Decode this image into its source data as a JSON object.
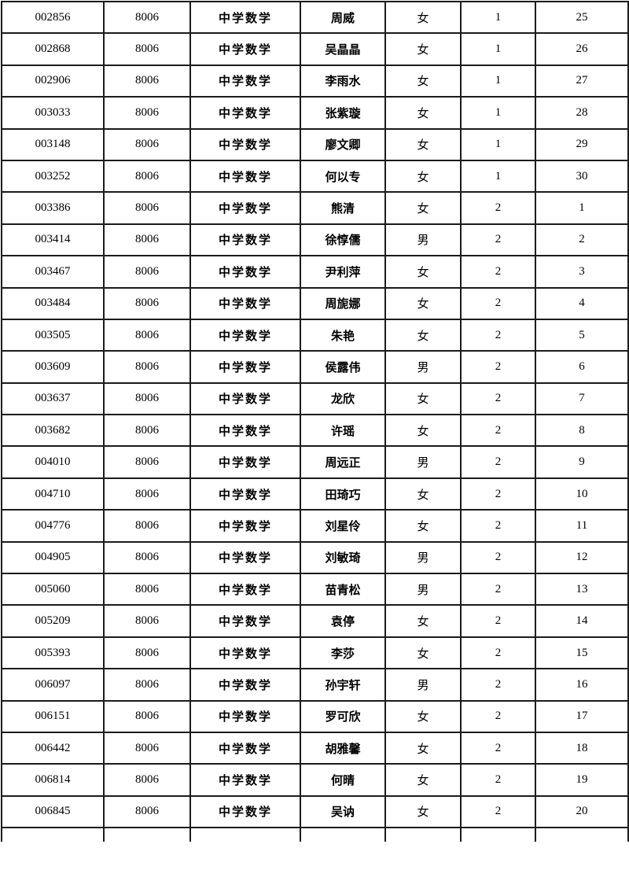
{
  "table": {
    "column_keys": [
      "id",
      "code",
      "subject",
      "name",
      "gender",
      "group",
      "seq"
    ],
    "column_semantics": {
      "id": "candidate-id",
      "code": "position-code",
      "subject": "subject-name",
      "name": "candidate-name",
      "gender": "gender",
      "group": "group-number",
      "seq": "sequence-number"
    },
    "rows": [
      [
        "002856",
        "8006",
        "中学数学",
        "周威",
        "女",
        "1",
        "25"
      ],
      [
        "002868",
        "8006",
        "中学数学",
        "吴晶晶",
        "女",
        "1",
        "26"
      ],
      [
        "002906",
        "8006",
        "中学数学",
        "李雨水",
        "女",
        "1",
        "27"
      ],
      [
        "003033",
        "8006",
        "中学数学",
        "张紫璇",
        "女",
        "1",
        "28"
      ],
      [
        "003148",
        "8006",
        "中学数学",
        "廖文卿",
        "女",
        "1",
        "29"
      ],
      [
        "003252",
        "8006",
        "中学数学",
        "何以专",
        "女",
        "1",
        "30"
      ],
      [
        "003386",
        "8006",
        "中学数学",
        "熊清",
        "女",
        "2",
        "1"
      ],
      [
        "003414",
        "8006",
        "中学数学",
        "徐惇儒",
        "男",
        "2",
        "2"
      ],
      [
        "003467",
        "8006",
        "中学数学",
        "尹利萍",
        "女",
        "2",
        "3"
      ],
      [
        "003484",
        "8006",
        "中学数学",
        "周旎娜",
        "女",
        "2",
        "4"
      ],
      [
        "003505",
        "8006",
        "中学数学",
        "朱艳",
        "女",
        "2",
        "5"
      ],
      [
        "003609",
        "8006",
        "中学数学",
        "侯露伟",
        "男",
        "2",
        "6"
      ],
      [
        "003637",
        "8006",
        "中学数学",
        "龙欣",
        "女",
        "2",
        "7"
      ],
      [
        "003682",
        "8006",
        "中学数学",
        "许瑶",
        "女",
        "2",
        "8"
      ],
      [
        "004010",
        "8006",
        "中学数学",
        "周远正",
        "男",
        "2",
        "9"
      ],
      [
        "004710",
        "8006",
        "中学数学",
        "田琦巧",
        "女",
        "2",
        "10"
      ],
      [
        "004776",
        "8006",
        "中学数学",
        "刘星伶",
        "女",
        "2",
        "11"
      ],
      [
        "004905",
        "8006",
        "中学数学",
        "刘敏琦",
        "男",
        "2",
        "12"
      ],
      [
        "005060",
        "8006",
        "中学数学",
        "苗青松",
        "男",
        "2",
        "13"
      ],
      [
        "005209",
        "8006",
        "中学数学",
        "袁停",
        "女",
        "2",
        "14"
      ],
      [
        "005393",
        "8006",
        "中学数学",
        "李莎",
        "女",
        "2",
        "15"
      ],
      [
        "006097",
        "8006",
        "中学数学",
        "孙宇轩",
        "男",
        "2",
        "16"
      ],
      [
        "006151",
        "8006",
        "中学数学",
        "罗可欣",
        "女",
        "2",
        "17"
      ],
      [
        "006442",
        "8006",
        "中学数学",
        "胡雅馨",
        "女",
        "2",
        "18"
      ],
      [
        "006814",
        "8006",
        "中学数学",
        "何晴",
        "女",
        "2",
        "19"
      ],
      [
        "006845",
        "8006",
        "中学数学",
        "吴讷",
        "女",
        "2",
        "20"
      ]
    ],
    "partial_next_row_visible": true
  },
  "colors": {
    "background": "#ffffff",
    "border": "#1b1b1b",
    "text": "#000000"
  }
}
